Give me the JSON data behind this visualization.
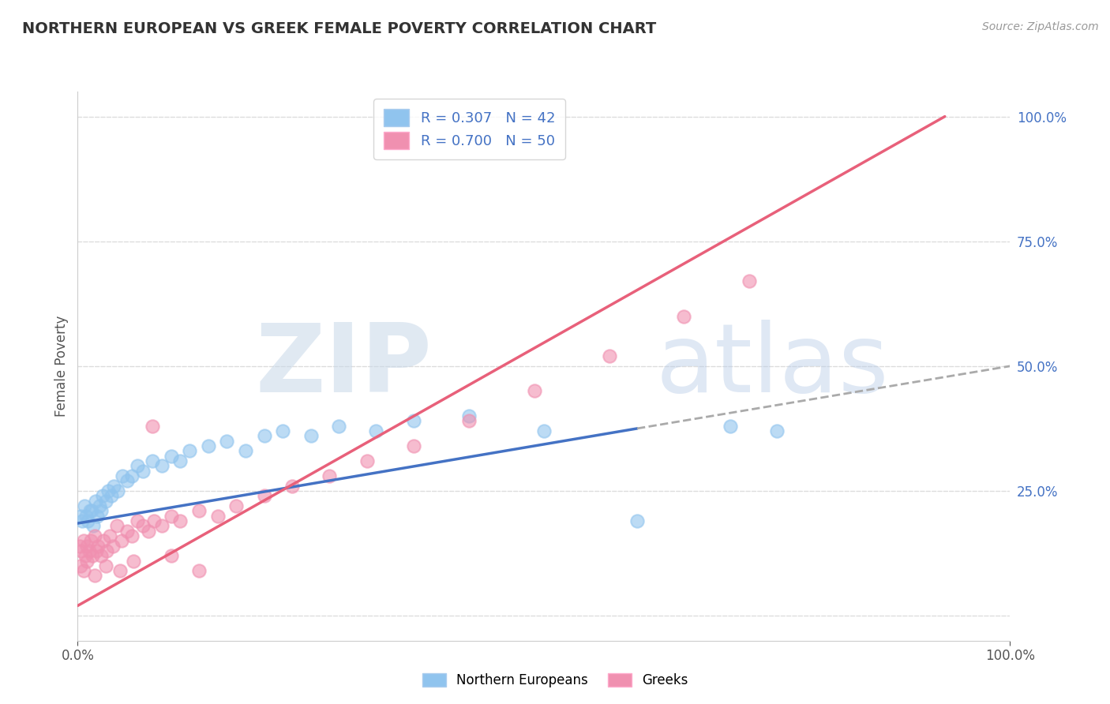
{
  "title": "NORTHERN EUROPEAN VS GREEK FEMALE POVERTY CORRELATION CHART",
  "source_text": "Source: ZipAtlas.com",
  "ylabel": "Female Poverty",
  "watermark_text": "ZIP",
  "watermark_text2": "atlas",
  "xlim": [
    0.0,
    1.0
  ],
  "ylim": [
    -0.05,
    1.05
  ],
  "right_yticks": [
    0.0,
    0.25,
    0.5,
    0.75,
    1.0
  ],
  "right_yticklabels": [
    "",
    "25.0%",
    "50.0%",
    "75.0%",
    "100.0%"
  ],
  "legend_r1": "R = 0.307   N = 42",
  "legend_r2": "R = 0.700   N = 50",
  "color_ne": "#90C4EE",
  "color_gr": "#F090B0",
  "color_ne_line": "#4472C4",
  "color_gr_line": "#E8607A",
  "color_dashed": "#AAAAAA",
  "ne_x": [
    0.003,
    0.005,
    0.007,
    0.009,
    0.011,
    0.013,
    0.015,
    0.017,
    0.019,
    0.021,
    0.023,
    0.025,
    0.027,
    0.03,
    0.033,
    0.036,
    0.039,
    0.043,
    0.048,
    0.053,
    0.058,
    0.064,
    0.07,
    0.08,
    0.09,
    0.1,
    0.11,
    0.12,
    0.14,
    0.16,
    0.18,
    0.2,
    0.22,
    0.25,
    0.28,
    0.32,
    0.36,
    0.42,
    0.5,
    0.6,
    0.7,
    0.75
  ],
  "ne_y": [
    0.2,
    0.19,
    0.22,
    0.2,
    0.19,
    0.21,
    0.21,
    0.18,
    0.23,
    0.2,
    0.22,
    0.21,
    0.24,
    0.23,
    0.25,
    0.24,
    0.26,
    0.25,
    0.28,
    0.27,
    0.28,
    0.3,
    0.29,
    0.31,
    0.3,
    0.32,
    0.31,
    0.33,
    0.34,
    0.35,
    0.33,
    0.36,
    0.37,
    0.36,
    0.38,
    0.37,
    0.39,
    0.4,
    0.37,
    0.19,
    0.38,
    0.37
  ],
  "gr_x": [
    0.002,
    0.004,
    0.006,
    0.008,
    0.01,
    0.012,
    0.014,
    0.016,
    0.018,
    0.02,
    0.022,
    0.025,
    0.028,
    0.031,
    0.034,
    0.038,
    0.042,
    0.047,
    0.053,
    0.058,
    0.064,
    0.07,
    0.076,
    0.082,
    0.09,
    0.1,
    0.11,
    0.13,
    0.15,
    0.17,
    0.2,
    0.23,
    0.27,
    0.31,
    0.36,
    0.42,
    0.49,
    0.57,
    0.65,
    0.72,
    0.003,
    0.006,
    0.01,
    0.018,
    0.03,
    0.045,
    0.06,
    0.08,
    0.1,
    0.13
  ],
  "gr_y": [
    0.14,
    0.13,
    0.15,
    0.12,
    0.14,
    0.13,
    0.15,
    0.12,
    0.16,
    0.13,
    0.14,
    0.12,
    0.15,
    0.13,
    0.16,
    0.14,
    0.18,
    0.15,
    0.17,
    0.16,
    0.19,
    0.18,
    0.17,
    0.19,
    0.18,
    0.2,
    0.19,
    0.21,
    0.2,
    0.22,
    0.24,
    0.26,
    0.28,
    0.31,
    0.34,
    0.39,
    0.45,
    0.52,
    0.6,
    0.67,
    0.1,
    0.09,
    0.11,
    0.08,
    0.1,
    0.09,
    0.11,
    0.38,
    0.12,
    0.09
  ],
  "ne_line_x": [
    0.0,
    0.6
  ],
  "ne_line_y": [
    0.185,
    0.375
  ],
  "gr_line_x": [
    0.0,
    0.93
  ],
  "gr_line_y": [
    0.02,
    1.0
  ],
  "dashed_line_x": [
    0.6,
    1.0
  ],
  "dashed_line_y": [
    0.375,
    0.5
  ],
  "background_color": "#FFFFFF",
  "grid_color": "#DDDDDD",
  "watermark_zip_color": "#C8D8E8",
  "watermark_atlas_color": "#B8CCE8"
}
